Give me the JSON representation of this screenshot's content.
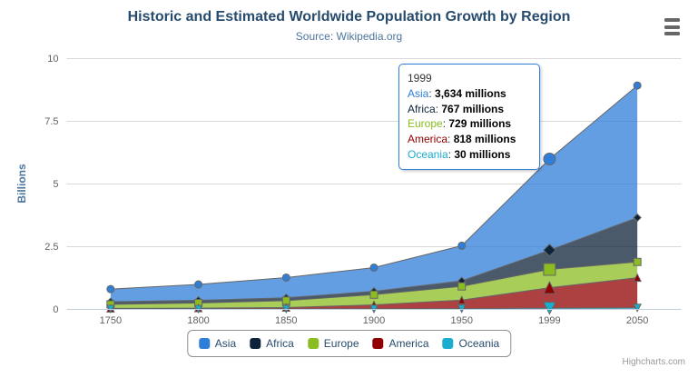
{
  "chart": {
    "title": "Historic and Estimated Worldwide Population Growth by Region",
    "subtitle": "Source: Wikipedia.org",
    "credits": "Highcharts.com",
    "context_menu_icon": "hamburger-icon"
  },
  "chart_data": {
    "type": "area",
    "stacking": "normal",
    "title": "Historic and Estimated Worldwide Population Growth by Region",
    "subtitle": "Source: Wikipedia.org",
    "categories": [
      "1750",
      "1800",
      "1850",
      "1900",
      "1950",
      "1999",
      "2050"
    ],
    "xlabel": "",
    "ylabel": "Billions",
    "ylim": [
      0,
      10
    ],
    "yticks": [
      0,
      2.5,
      5,
      7.5,
      10
    ],
    "ytick_labels": [
      "0",
      "2.5",
      "5",
      "7.5",
      "10"
    ],
    "value_unit": "millions",
    "grid": true,
    "legend_position": "bottom",
    "hover_index": 5,
    "line_color": "#666666",
    "axis_line_color": "#C0D0E0",
    "grid_color": "#D8D8D8",
    "fill_opacity": 0.75,
    "series": [
      {
        "name": "Asia",
        "color": "#2f7ed8",
        "marker": "circle",
        "values": [
          502,
          635,
          809,
          947,
          1402,
          3634,
          5268
        ]
      },
      {
        "name": "Africa",
        "color": "#0d233a",
        "marker": "diamond",
        "values": [
          106,
          107,
          111,
          133,
          221,
          767,
          1766
        ]
      },
      {
        "name": "Europe",
        "color": "#8bbc21",
        "marker": "square",
        "values": [
          163,
          203,
          276,
          408,
          547,
          729,
          628
        ]
      },
      {
        "name": "America",
        "color": "#910000",
        "marker": "triangle",
        "values": [
          18,
          31,
          54,
          156,
          339,
          818,
          1201
        ]
      },
      {
        "name": "Oceania",
        "color": "#1aadce",
        "marker": "triangle-down",
        "values": [
          2,
          2,
          2,
          6,
          13,
          30,
          46
        ]
      }
    ]
  },
  "tooltip": {
    "header": "1999",
    "border_color": "#2f7ed8",
    "rows": [
      {
        "label": "Asia",
        "color": "#2f7ed8",
        "value": "3,634 millions"
      },
      {
        "label": "Africa",
        "color": "#0d233a",
        "value": "767 millions"
      },
      {
        "label": "Europe",
        "color": "#8bbc21",
        "value": "729 millions"
      },
      {
        "label": "America",
        "color": "#910000",
        "value": "818 millions"
      },
      {
        "label": "Oceania",
        "color": "#1aadce",
        "value": "30 millions"
      }
    ]
  },
  "legend": {
    "items": [
      {
        "label": "Asia",
        "color": "#2f7ed8"
      },
      {
        "label": "Africa",
        "color": "#0d233a"
      },
      {
        "label": "Europe",
        "color": "#8bbc21"
      },
      {
        "label": "America",
        "color": "#910000"
      },
      {
        "label": "Oceania",
        "color": "#1aadce"
      }
    ]
  }
}
